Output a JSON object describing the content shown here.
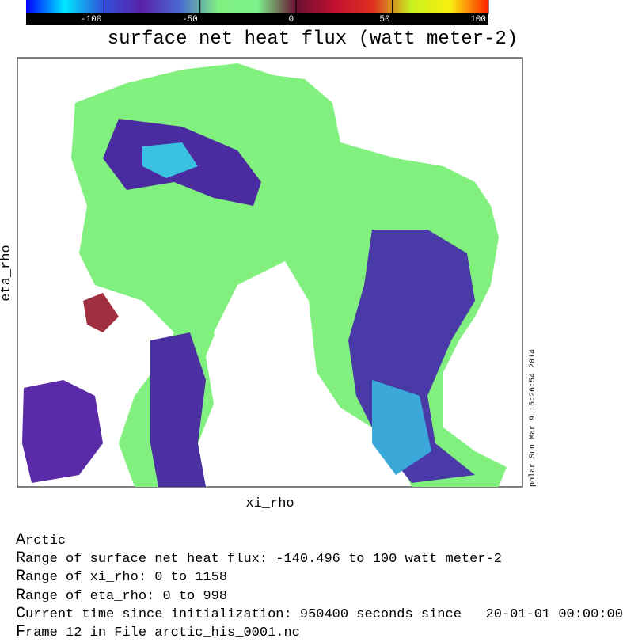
{
  "colorbar": {
    "range": [
      -140.496,
      100
    ],
    "ticks": [
      -100,
      -50,
      0,
      50,
      100
    ],
    "colors": [
      "#0000ff",
      "#00e8ff",
      "#3050d8",
      "#5a22a8",
      "#4a6ad0",
      "#80f080",
      "#7cf28a",
      "#6a1030",
      "#c01030",
      "#e03020",
      "#c8f020",
      "#f8f010",
      "#ff2000"
    ]
  },
  "title": "surface net heat flux (watt meter-2)",
  "x_label": "xi_rho",
  "y_label": "eta_rho",
  "timestamp": "polar Sun Mar  9 15:26:54 2014",
  "info": [
    "Arctic",
    "Range of surface net heat flux: -140.496 to 100 watt meter-2",
    "Range of xi_rho: 0 to 1158",
    "Range of eta_rho: 0 to 998",
    "Current time since initialization: 950400 seconds since   20-01-01 00:00:00",
    "Frame 12 in File arctic_his_0001.nc"
  ]
}
